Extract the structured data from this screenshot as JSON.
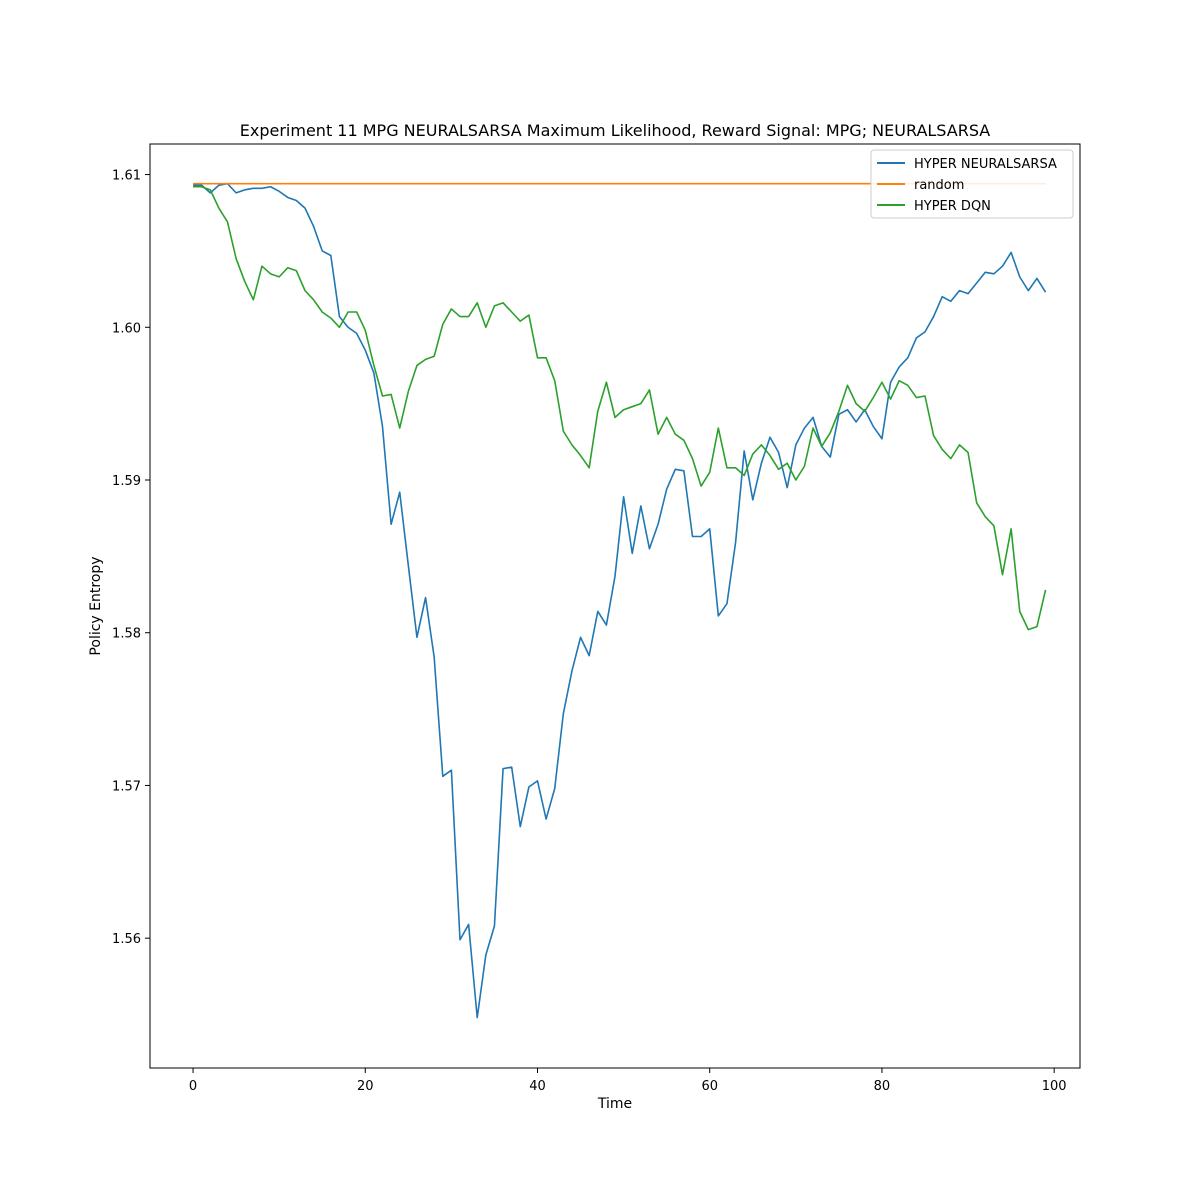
{
  "chart_data": {
    "type": "line",
    "title": "Experiment 11 MPG NEURALSARSA Maximum Likelihood,  Reward Signal: MPG; NEURALSARSA",
    "xlabel": "Time",
    "ylabel": "Policy Entropy",
    "xlim": [
      -5,
      103
    ],
    "ylim": [
      1.5515,
      1.612
    ],
    "x_ticks": [
      0,
      20,
      40,
      60,
      80,
      100
    ],
    "x_tick_labels": [
      "0",
      "20",
      "40",
      "60",
      "80",
      "100"
    ],
    "y_ticks": [
      1.56,
      1.57,
      1.58,
      1.59,
      1.6,
      1.61
    ],
    "y_tick_labels": [
      "1.56",
      "1.57",
      "1.58",
      "1.59",
      "1.60",
      "1.61"
    ],
    "grid": false,
    "legend_position": "top-right",
    "x": [
      0,
      1,
      2,
      3,
      4,
      5,
      6,
      7,
      8,
      9,
      10,
      11,
      12,
      13,
      14,
      15,
      16,
      17,
      18,
      19,
      20,
      21,
      22,
      23,
      24,
      25,
      26,
      27,
      28,
      29,
      30,
      31,
      32,
      33,
      34,
      35,
      36,
      37,
      38,
      39,
      40,
      41,
      42,
      43,
      44,
      45,
      46,
      47,
      48,
      49,
      50,
      51,
      52,
      53,
      54,
      55,
      56,
      57,
      58,
      59,
      60,
      61,
      62,
      63,
      64,
      65,
      66,
      67,
      68,
      69,
      70,
      71,
      72,
      73,
      74,
      75,
      76,
      77,
      78,
      79,
      80,
      81,
      82,
      83,
      84,
      85,
      86,
      87,
      88,
      89,
      90,
      91,
      92,
      93,
      94,
      95,
      96,
      97,
      98,
      99
    ],
    "series": [
      {
        "name": "HYPER NEURALSARSA",
        "color": "#1f77b4",
        "values": [
          1.6093,
          1.6093,
          1.6088,
          1.6093,
          1.6094,
          1.6088,
          1.609,
          1.6091,
          1.6091,
          1.6092,
          1.6089,
          1.6085,
          1.6083,
          1.6078,
          1.6066,
          1.605,
          1.6047,
          1.6007,
          1.6,
          1.5996,
          1.5985,
          1.597,
          1.5935,
          1.5871,
          1.5892,
          1.5844,
          1.5797,
          1.5823,
          1.5784,
          1.5706,
          1.571,
          1.5599,
          1.5609,
          1.5548,
          1.5589,
          1.5608,
          1.5711,
          1.5712,
          1.5673,
          1.5699,
          1.5703,
          1.5678,
          1.5698,
          1.5747,
          1.5775,
          1.5797,
          1.5785,
          1.5814,
          1.5805,
          1.5837,
          1.5889,
          1.5852,
          1.5883,
          1.5855,
          1.5871,
          1.5894,
          1.5907,
          1.5906,
          1.5863,
          1.5863,
          1.5868,
          1.5811,
          1.5819,
          1.5859,
          1.5919,
          1.5887,
          1.5911,
          1.5928,
          1.5918,
          1.5895,
          1.5923,
          1.5934,
          1.5941,
          1.5922,
          1.5915,
          1.5943,
          1.5946,
          1.5938,
          1.5946,
          1.5935,
          1.5927,
          1.5964,
          1.5974,
          1.598,
          1.5993,
          1.5997,
          1.6007,
          1.602,
          1.6017,
          1.6024,
          1.6022,
          1.6029,
          1.6036,
          1.6035,
          1.604,
          1.6049,
          1.6033,
          1.6024,
          1.6032,
          1.6023
        ]
      },
      {
        "name": "random",
        "color": "#ff7f0e",
        "values": [
          1.6094,
          1.6094,
          1.6094,
          1.6094,
          1.6094,
          1.6094,
          1.6094,
          1.6094,
          1.6094,
          1.6094,
          1.6094,
          1.6094,
          1.6094,
          1.6094,
          1.6094,
          1.6094,
          1.6094,
          1.6094,
          1.6094,
          1.6094,
          1.6094,
          1.6094,
          1.6094,
          1.6094,
          1.6094,
          1.6094,
          1.6094,
          1.6094,
          1.6094,
          1.6094,
          1.6094,
          1.6094,
          1.6094,
          1.6094,
          1.6094,
          1.6094,
          1.6094,
          1.6094,
          1.6094,
          1.6094,
          1.6094,
          1.6094,
          1.6094,
          1.6094,
          1.6094,
          1.6094,
          1.6094,
          1.6094,
          1.6094,
          1.6094,
          1.6094,
          1.6094,
          1.6094,
          1.6094,
          1.6094,
          1.6094,
          1.6094,
          1.6094,
          1.6094,
          1.6094,
          1.6094,
          1.6094,
          1.6094,
          1.6094,
          1.6094,
          1.6094,
          1.6094,
          1.6094,
          1.6094,
          1.6094,
          1.6094,
          1.6094,
          1.6094,
          1.6094,
          1.6094,
          1.6094,
          1.6094,
          1.6094,
          1.6094,
          1.6094,
          1.6094,
          1.6094,
          1.6094,
          1.6094,
          1.6094,
          1.6094,
          1.6094,
          1.6094,
          1.6094,
          1.6094,
          1.6094,
          1.6094,
          1.6094,
          1.6094,
          1.6094,
          1.6094,
          1.6094,
          1.6094,
          1.6094,
          1.6094
        ]
      },
      {
        "name": "HYPER DQN",
        "color": "#2ca02c",
        "values": [
          1.6092,
          1.6092,
          1.609,
          1.6078,
          1.6069,
          1.6045,
          1.603,
          1.6018,
          1.604,
          1.6035,
          1.6033,
          1.6039,
          1.6037,
          1.6024,
          1.6018,
          1.601,
          1.6006,
          1.6,
          1.601,
          1.601,
          1.5998,
          1.5975,
          1.5955,
          1.5956,
          1.5934,
          1.5958,
          1.5975,
          1.5979,
          1.5981,
          1.6002,
          1.6012,
          1.6007,
          1.6007,
          1.6016,
          1.6,
          1.6014,
          1.6016,
          1.601,
          1.6004,
          1.6008,
          1.598,
          1.598,
          1.5965,
          1.5932,
          1.5923,
          1.5916,
          1.5908,
          1.5945,
          1.5964,
          1.5941,
          1.5946,
          1.5948,
          1.595,
          1.5959,
          1.593,
          1.5941,
          1.593,
          1.5926,
          1.5914,
          1.5896,
          1.5905,
          1.5934,
          1.5908,
          1.5908,
          1.5903,
          1.5917,
          1.5923,
          1.5916,
          1.5907,
          1.5911,
          1.59,
          1.5909,
          1.5934,
          1.5922,
          1.5931,
          1.5945,
          1.5962,
          1.595,
          1.5945,
          1.5954,
          1.5964,
          1.5953,
          1.5965,
          1.5962,
          1.5954,
          1.5955,
          1.5929,
          1.592,
          1.5914,
          1.5923,
          1.5918,
          1.5885,
          1.5876,
          1.587,
          1.5838,
          1.5868,
          1.5814,
          1.5802,
          1.5804,
          1.5828
        ]
      }
    ]
  }
}
